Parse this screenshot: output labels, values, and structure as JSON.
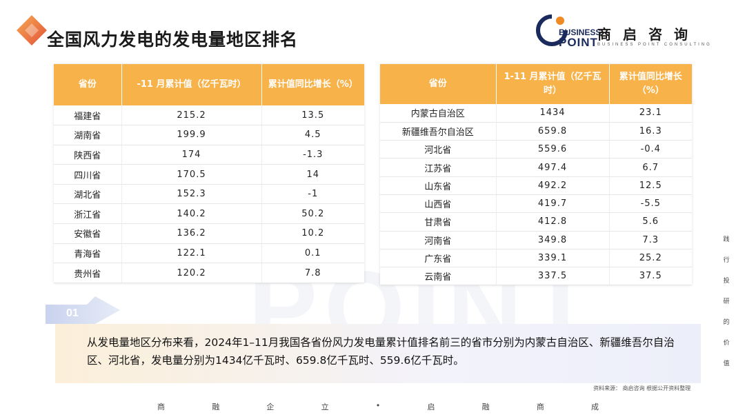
{
  "page": {
    "title": "全国风力发电的发电量地区排名"
  },
  "logo": {
    "en_line1": "BUSINESS",
    "en_line2": "POINT",
    "cn": "商启咨询",
    "sub": "BUSINESS POINT CONSULTING"
  },
  "watermark": "POINT",
  "table_left": {
    "headers": [
      "省份",
      "-11 月累计值（亿千瓦时）",
      "累计值同比增长（%）"
    ],
    "rows": [
      [
        "福建省",
        "215.2",
        "13.5"
      ],
      [
        "湖南省",
        "199.9",
        "4.5"
      ],
      [
        "陕西省",
        "174",
        "-1.3"
      ],
      [
        "四川省",
        "170.5",
        "14"
      ],
      [
        "湖北省",
        "152.3",
        "-1"
      ],
      [
        "浙江省",
        "140.2",
        "50.2"
      ],
      [
        "安徽省",
        "136.2",
        "10.2"
      ],
      [
        "青海省",
        "122.1",
        "0.1"
      ],
      [
        "贵州省",
        "120.2",
        "7.8"
      ]
    ]
  },
  "table_right": {
    "headers": [
      "省份",
      "1-11 月累计值（亿千瓦时）",
      "累计值同比增长（%）"
    ],
    "rows": [
      [
        "内蒙古自治区",
        "1434",
        "23.1"
      ],
      [
        "新疆维吾尔自治区",
        "659.8",
        "16.3"
      ],
      [
        "河北省",
        "559.6",
        "-0.4"
      ],
      [
        "江苏省",
        "497.4",
        "6.7"
      ],
      [
        "山东省",
        "492.2",
        "12.5"
      ],
      [
        "山西省",
        "419.7",
        "-5.5"
      ],
      [
        "甘肃省",
        "412.8",
        "5.6"
      ],
      [
        "河南省",
        "349.8",
        "7.3"
      ],
      [
        "广东省",
        "339.1",
        "25.2"
      ],
      [
        "云南省",
        "337.5",
        "37.5"
      ]
    ]
  },
  "summary": {
    "number": "01",
    "text": "从发电量地区分布来看，2024年1–11月我国各省份风力发电量累计值排名前三的省市分别为内蒙古自治区、新疆维吾尔自治区、河北省，发电量分别为1434亿千瓦时、659.8亿千瓦时、559.6亿千瓦时。"
  },
  "source": "资料来源： 商启咨询 根据公开资料整理",
  "side_text": [
    "践",
    "行",
    "投",
    "研",
    "的",
    "价",
    "值"
  ],
  "footer": [
    "商",
    "融",
    "企",
    "立",
    "•",
    "启",
    "融",
    "商",
    "成"
  ],
  "colors": {
    "header_orange": "#f7b24a",
    "accent_red": "#e2492f",
    "brand_navy": "#1b2a5c"
  }
}
